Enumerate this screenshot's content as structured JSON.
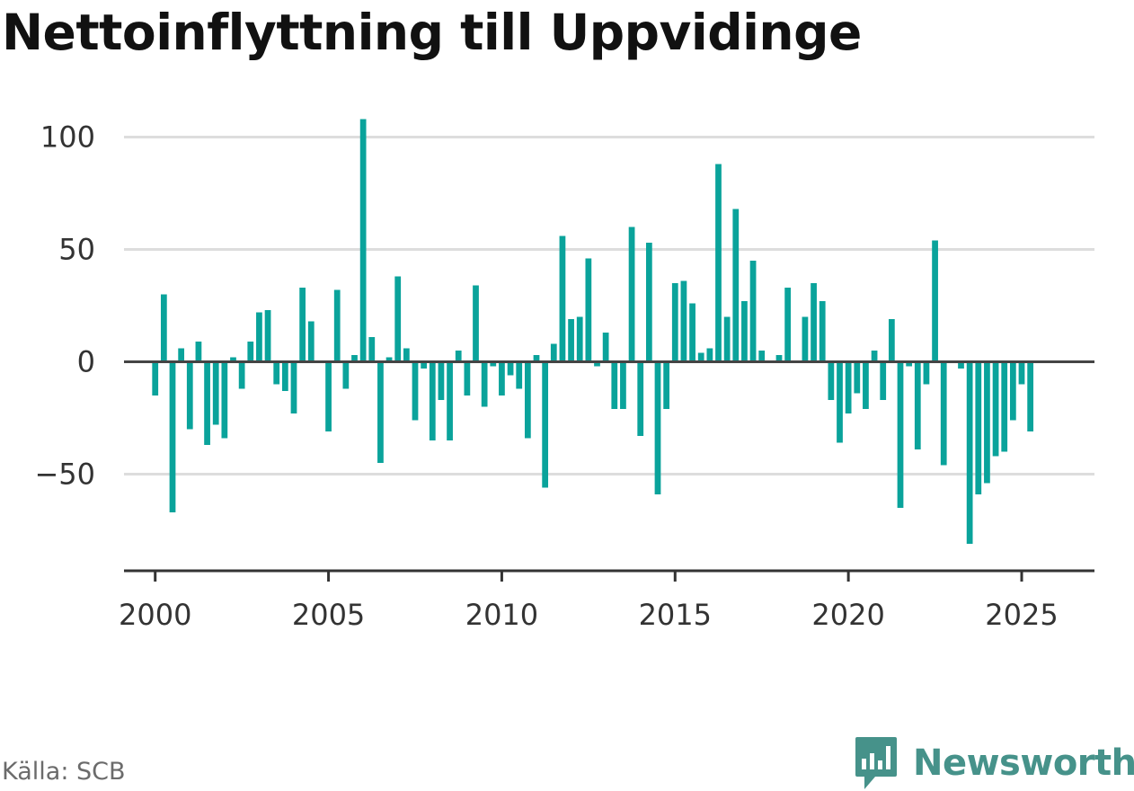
{
  "title": "Nettoinflyttning till Uppvidinge",
  "source": "Källa: SCB",
  "brand": {
    "name": "Newsworthy",
    "icon": "newsworthy-logo-icon",
    "color": "#46928a"
  },
  "chart_data": {
    "type": "bar",
    "bar_color": "#0aa39b",
    "x_ticks": [
      2000,
      2005,
      2010,
      2015,
      2020,
      2025
    ],
    "y_ticks": [
      100,
      50,
      0,
      -50
    ],
    "y_tick_labels": [
      "100",
      "50",
      "0",
      "−50"
    ],
    "ylim": [
      -93,
      113
    ],
    "xlim": [
      1999.1,
      2027.1
    ],
    "grid": true,
    "quarters_start": "2000Q1",
    "values": [
      -15,
      30,
      -67,
      6,
      -30,
      9,
      -37,
      -28,
      -34,
      2,
      -12,
      9,
      22,
      23,
      -10,
      -13,
      -23,
      33,
      18,
      0,
      -31,
      32,
      -12,
      3,
      108,
      11,
      -45,
      2,
      38,
      6,
      -26,
      -3,
      -35,
      -17,
      -35,
      5,
      -15,
      34,
      -20,
      -2,
      -15,
      -6,
      -12,
      -34,
      3,
      -56,
      8,
      56,
      19,
      20,
      46,
      -2,
      13,
      -21,
      -21,
      60,
      -33,
      53,
      -59,
      -21,
      35,
      36,
      26,
      4,
      6,
      88,
      20,
      68,
      27,
      45,
      5,
      0,
      3,
      33,
      0,
      20,
      35,
      27,
      -17,
      -36,
      -23,
      -14,
      -21,
      5,
      -17,
      19,
      -65,
      -2,
      -39,
      -10,
      54,
      -46,
      0,
      -3,
      -81,
      -59,
      -54,
      -42,
      -40,
      -26,
      -10,
      -31
    ]
  }
}
